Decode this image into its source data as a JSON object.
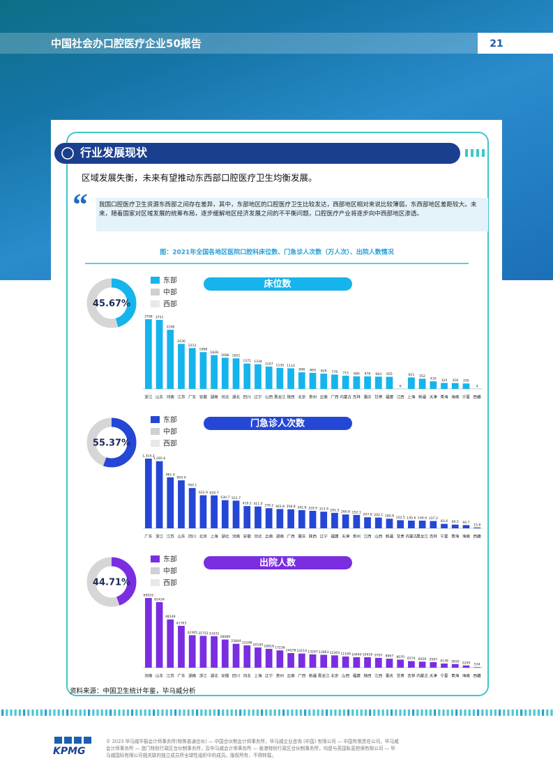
{
  "header": {
    "title": "中国社会办口腔医疗企业50报告",
    "page": 21
  },
  "section_title": "行业发展现状",
  "headline": "区域发展失衡，未来有望推动东西部口腔医疗卫生均衡发展。",
  "quote": "我国口腔医疗卫生资源东西部之间存在差异，其中，东部地区的口腔医疗卫生比较发达，西部地区相对来说比较薄弱，东西部地区差距较大。未来，随着国家对区域发展的统筹布局，逐步缓解地区经济发展之间的不平衡问题，口腔医疗产业将逐步向中西部地区渗透。",
  "figure_title": "图：2021年全国各地区医院口腔科床位数、门急诊人次数（万人次）、出院人数情况",
  "chart_data": [
    {
      "type": "bar",
      "title": "床位数",
      "color": "#16b4ec",
      "legend": [
        "东部",
        "中部",
        "西部"
      ],
      "legend_colors": [
        "#16b4ec",
        "#d0d0d0",
        "#e8e8e8"
      ],
      "share": 45.67,
      "share_label": "45.67%",
      "categories": [
        "浙江",
        "山东",
        "河南",
        "江苏",
        "广东",
        "安徽",
        "湖南",
        "河北",
        "湖北",
        "四川",
        "辽宁",
        "山西",
        "黑龙江",
        "陕西",
        "北京",
        "贵州",
        "云南",
        "广西",
        "内蒙古",
        "吉林",
        "重庆",
        "甘肃",
        "福建",
        "江西",
        "上海",
        "新疆",
        "天津",
        "青海",
        "海南",
        "宁夏",
        "西藏"
      ],
      "values": [
        3768,
        3731,
        3198,
        2436,
        2212,
        1988,
        1828,
        1686,
        1651,
        1371,
        1334,
        1207,
        1135,
        1114,
        898,
        869,
        826,
        776,
        715,
        680,
        676,
        664,
        655,
        6,
        621,
        552,
        410,
        324,
        318,
        295,
        4
      ]
    },
    {
      "type": "bar",
      "title": "门急诊人次数",
      "color": "#2547d6",
      "legend": [
        "东部",
        "中部",
        "西部"
      ],
      "legend_colors": [
        "#2547d6",
        "#d0d0d0",
        "#e8e8e8"
      ],
      "share": 55.37,
      "share_label": "55.37%",
      "categories": [
        "广东",
        "浙江",
        "江苏",
        "山东",
        "四川",
        "北京",
        "上海",
        "湖北",
        "河南",
        "安徽",
        "河北",
        "云南",
        "湖南",
        "广西",
        "重庆",
        "陕西",
        "辽宁",
        "福建",
        "天津",
        "贵州",
        "江西",
        "山西",
        "新疆",
        "甘肃",
        "内蒙古",
        "黑龙江",
        "吉林",
        "宁夏",
        "青海",
        "海南",
        "西藏"
      ],
      "values": [
        1314.2,
        1265.6,
        961.4,
        904.4,
        760.1,
        622.9,
        620.7,
        530.7,
        521.7,
        419.2,
        411.0,
        379.2,
        363.8,
        358.8,
        341.8,
        329.9,
        313.9,
        291.5,
        260.6,
        252.1,
        207.8,
        202.1,
        180.8,
        152.5,
        145.6,
        144.6,
        137.2,
        83.6,
        69.5,
        60.7,
        15.8
      ],
      "value_labels": [
        "1,314.2",
        "1,265.6",
        "961.4",
        "904.4",
        "760.1",
        "622.9",
        "620.7",
        "530.7",
        "521.7",
        "419.2",
        "411.0",
        "379.2",
        "363.8",
        "358.8",
        "341.8",
        "329.9",
        "313.9",
        "291.5",
        "260.6",
        "252.1",
        "207.8",
        "202.1",
        "180.8",
        "152.5",
        "145.6",
        "144.6",
        "137.2",
        "83.6",
        "69.5",
        "60.7",
        "15.8"
      ]
    },
    {
      "type": "bar",
      "title": "出院人数",
      "color": "#7a2ee0",
      "legend": [
        "东部",
        "中部",
        "西部"
      ],
      "legend_colors": [
        "#7a2ee0",
        "#d0d0d0",
        "#e8e8e8"
      ],
      "share": 44.71,
      "share_label": "44.71%",
      "categories": [
        "河南",
        "山东",
        "江苏",
        "广东",
        "湖南",
        "浙江",
        "湖北",
        "安徽",
        "四川",
        "河北",
        "上海",
        "辽宁",
        "贵州",
        "云南",
        "广西",
        "新疆",
        "黑龙江",
        "北京",
        "山西",
        "福建",
        "陕西",
        "江西",
        "重庆",
        "甘肃",
        "吉林",
        "内蒙古",
        "天津",
        "宁夏",
        "青海",
        "海南",
        "西藏"
      ],
      "values": [
        69525,
        65434,
        48149,
        41763,
        32395,
        31752,
        31431,
        28089,
        23844,
        22296,
        20195,
        18818,
        17236,
        14578,
        14114,
        13267,
        12863,
        12303,
        11169,
        10440,
        10416,
        9797,
        8967,
        8070,
        6574,
        6026,
        5587,
        4138,
        3650,
        2209,
        534
      ]
    }
  ],
  "source": "资料来源：中国卫生统计年鉴，毕马威分析",
  "footer": {
    "logo": "KPMG",
    "lines": [
      "© 2023 毕马威华振会计师事务所(特殊普通合伙) — 中国合伙制会计师事务所，毕马威企业咨询 (中国) 有限公司 — 中国有限责任公司，毕马威",
      "会计师事务所 — 澳门特别行政区合伙制事务所，及毕马威会计师事务所 — 香港特别行政区合伙制事务所，均是与英国私营担保有限公司 — 毕",
      "马威国际有限公司相关联的独立成员所全球性组织中的成员。版权所有，不得转载。"
    ]
  }
}
